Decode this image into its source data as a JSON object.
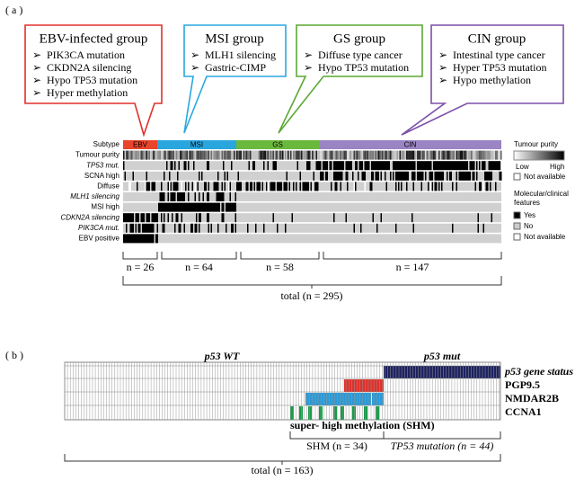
{
  "panel_a": {
    "label": "( a )",
    "groups": [
      {
        "title": "EBV-infected group",
        "items": [
          "PIK3CA mutation",
          "CKDN2A silencing",
          "Hypo TP53 mutation",
          "Hyper methylation"
        ]
      },
      {
        "title": "MSI group",
        "items": [
          "MLH1 silencing",
          "Gastric-CIMP"
        ]
      },
      {
        "title": "GS group",
        "items": [
          "Diffuse  type cancer",
          "Hypo TP53  mutation"
        ]
      },
      {
        "title": "CIN group",
        "items": [
          "Intestinal  type cancer",
          "Hyper TP53 mutation",
          "Hypo methylation"
        ]
      }
    ],
    "subtypes": [
      "EBV",
      "MSI",
      "GS",
      "CIN"
    ],
    "rows": [
      "Subtype",
      "Tumour purity",
      "TP53 mut.",
      "SCNA high",
      "Diffuse",
      "MLH1 silencing",
      "MSI high",
      "CDKN2A silencing",
      "PIK3CA mut.",
      "EBV positive"
    ],
    "legend": {
      "purity_title": "Tumour purity",
      "low": "Low",
      "high": "High",
      "purity_na": "Not available",
      "features_title": [
        "Molecular/clinical",
        "features"
      ],
      "yes": "Yes",
      "no": "No",
      "na": "Not available"
    },
    "counts": [
      "n = 26",
      "n = 64",
      "n = 58",
      "n = 147"
    ],
    "total": "total (n = 295)"
  },
  "panel_b": {
    "label": "( b )",
    "wt": "p53 WT",
    "mut": "p53 mut",
    "rows": [
      "p53 gene status",
      "PGP9.5",
      "NMDAR2B",
      "CCNA1"
    ],
    "shm_label": "super- high methylation (SHM)",
    "shm": "SHM (n = 34)",
    "tp53": "TP53 mutation  (n = 44)",
    "total": "total (n = 163)"
  }
}
